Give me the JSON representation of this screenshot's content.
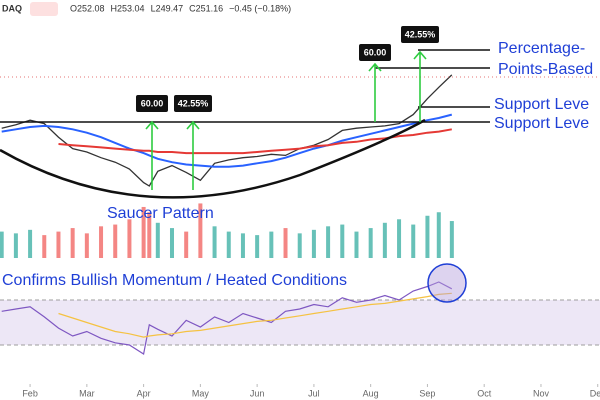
{
  "chart_data": {
    "type": "line",
    "header": {
      "symbol": "DAQ",
      "items": [
        "O252.08",
        "H253.04",
        "L249.47",
        "C251.16",
        "−0.45 (−0.18%)"
      ]
    },
    "x": [
      1.5,
      1.75,
      2,
      2.25,
      2.5,
      2.75,
      3,
      3.25,
      3.5,
      3.75,
      4,
      4.1,
      4.25,
      4.5,
      4.75,
      5,
      5.25,
      5.5,
      5.75,
      6,
      6.25,
      6.5,
      6.75,
      7,
      7.25,
      7.5,
      7.75,
      8,
      8.25,
      8.5,
      8.75,
      9,
      9.2,
      9.43
    ],
    "xlim": [
      1.47,
      12.04
    ],
    "xticks": [
      {
        "value": 2,
        "label": "Feb"
      },
      {
        "value": 3,
        "label": "Mar"
      },
      {
        "value": 4,
        "label": "Apr"
      },
      {
        "value": 5,
        "label": "May"
      },
      {
        "value": 6,
        "label": "Jun"
      },
      {
        "value": 7,
        "label": "Jul"
      },
      {
        "value": 8,
        "label": "Aug"
      },
      {
        "value": 9,
        "label": "Sep"
      },
      {
        "value": 10,
        "label": "Oct"
      },
      {
        "value": 11,
        "label": "Nov"
      },
      {
        "value": 12,
        "label": "Dec"
      }
    ],
    "ylim": [
      78,
      309
    ],
    "series": [
      {
        "color": "#333333",
        "values": [
          196,
          199,
          203,
          200,
          188,
          178,
          175,
          170,
          166,
          160,
          148,
          145,
          158,
          163,
          157,
          150,
          165,
          168,
          170,
          171,
          173,
          172,
          178,
          181,
          186,
          194,
          196,
          197,
          198,
          200,
          208,
          222,
          232,
          243
        ]
      },
      {
        "color": "#2962ff",
        "values": [
          193,
          195,
          197,
          198,
          197,
          195,
          192,
          188,
          183,
          178,
          174,
          172,
          169,
          166,
          164,
          163,
          162,
          162,
          163,
          165,
          167,
          170,
          174,
          178,
          181,
          185,
          188,
          191,
          194,
          197,
          200,
          203,
          205,
          208
        ]
      },
      {
        "color": "#e53935",
        "values": [
          null,
          null,
          null,
          null,
          182,
          181,
          180,
          179,
          178,
          177,
          176,
          176,
          175,
          175,
          174,
          174,
          174,
          174,
          174,
          175,
          176,
          177,
          178,
          180,
          181,
          183,
          184,
          186,
          187,
          189,
          190,
          192,
          193,
          195
        ]
      }
    ],
    "volume": {
      "color": "#26a69a",
      "values": [
        30,
        28,
        32,
        26,
        30,
        34,
        28,
        36,
        38,
        44,
        58,
        52,
        40,
        34,
        30,
        62,
        36,
        30,
        28,
        26,
        30,
        34,
        28,
        32,
        36,
        38,
        30,
        34,
        40,
        44,
        38,
        48,
        52,
        42
      ],
      "ylim": [
        0,
        100
      ]
    },
    "rsi": {
      "ylim": [
        0,
        100
      ],
      "bands": [
        30,
        70
      ],
      "band_color": "#ede7f6",
      "series": [
        {
          "color": "#7e57c2",
          "values": [
            60,
            62,
            64,
            55,
            45,
            38,
            42,
            36,
            32,
            30,
            22,
            48,
            44,
            38,
            52,
            46,
            55,
            50,
            58,
            54,
            50,
            60,
            62,
            66,
            64,
            72,
            68,
            70,
            74,
            70,
            78,
            82,
            86,
            80
          ]
        },
        {
          "color": "#f5c242",
          "values": [
            null,
            null,
            null,
            null,
            58,
            54,
            50,
            46,
            42,
            40,
            37,
            38,
            39,
            40,
            42,
            43,
            45,
            47,
            49,
            51,
            52,
            54,
            56,
            58,
            60,
            62,
            64,
            66,
            67,
            69,
            71,
            73,
            75,
            76
          ]
        }
      ]
    },
    "annotations": [
      "60.00",
      "42.55%",
      "60.00",
      "42.55%",
      "Percentage-",
      "Points-Based",
      "Support Leve",
      "Support Leve",
      "Saucer Pattern",
      "Confirms Bullish Momentum / Heated Conditions"
    ]
  }
}
